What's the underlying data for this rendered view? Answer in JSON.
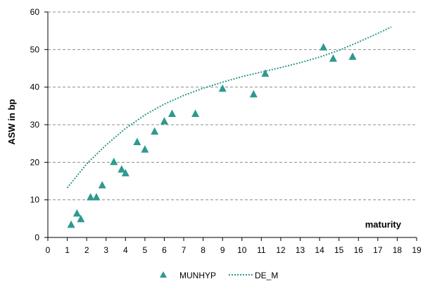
{
  "chart_data": {
    "type": "scatter",
    "title": "",
    "xlabel": "maturity",
    "ylabel": "ASW in bp",
    "xlim": [
      0,
      19
    ],
    "ylim": [
      0,
      60
    ],
    "x_ticks": [
      "0",
      "1",
      "2",
      "3",
      "4",
      "5",
      "6",
      "7",
      "8",
      "9",
      "10",
      "11",
      "12",
      "13",
      "14",
      "15",
      "16",
      "17",
      "18",
      "19"
    ],
    "y_ticks": [
      "0",
      "10",
      "20",
      "30",
      "40",
      "50",
      "60"
    ],
    "grid": "horizontal dashed",
    "legend_position": "bottom",
    "series": [
      {
        "name": "MUNHYP",
        "kind": "scatter",
        "marker": "triangle",
        "color": "#2e9a8f",
        "points": [
          [
            1.2,
            3.5
          ],
          [
            1.5,
            6.5
          ],
          [
            1.7,
            5.0
          ],
          [
            2.2,
            10.8
          ],
          [
            2.5,
            10.8
          ],
          [
            2.8,
            14.0
          ],
          [
            3.4,
            20.2
          ],
          [
            3.8,
            18.2
          ],
          [
            4.0,
            17.2
          ],
          [
            4.6,
            25.5
          ],
          [
            5.0,
            23.5
          ],
          [
            5.5,
            28.3
          ],
          [
            6.0,
            31.0
          ],
          [
            6.4,
            33.0
          ],
          [
            7.6,
            33.0
          ],
          [
            9.0,
            39.7
          ],
          [
            10.6,
            38.2
          ],
          [
            11.2,
            43.7
          ],
          [
            14.2,
            50.7
          ],
          [
            14.7,
            47.7
          ],
          [
            15.7,
            48.2
          ]
        ]
      },
      {
        "name": "DE_M",
        "kind": "line",
        "style": "dotted",
        "color": "#2e9a8f",
        "points": [
          [
            1.0,
            13.2
          ],
          [
            2.0,
            19.6
          ],
          [
            3.0,
            24.6
          ],
          [
            4.0,
            29.0
          ],
          [
            5.0,
            32.6
          ],
          [
            6.0,
            35.5
          ],
          [
            7.0,
            37.8
          ],
          [
            8.0,
            39.7
          ],
          [
            9.0,
            41.3
          ],
          [
            10.0,
            42.8
          ],
          [
            11.0,
            44.0
          ],
          [
            12.0,
            45.2
          ],
          [
            13.0,
            46.5
          ],
          [
            14.0,
            48.0
          ],
          [
            15.0,
            49.8
          ],
          [
            16.0,
            52.0
          ],
          [
            17.0,
            54.3
          ],
          [
            17.7,
            56.0
          ]
        ]
      }
    ]
  }
}
